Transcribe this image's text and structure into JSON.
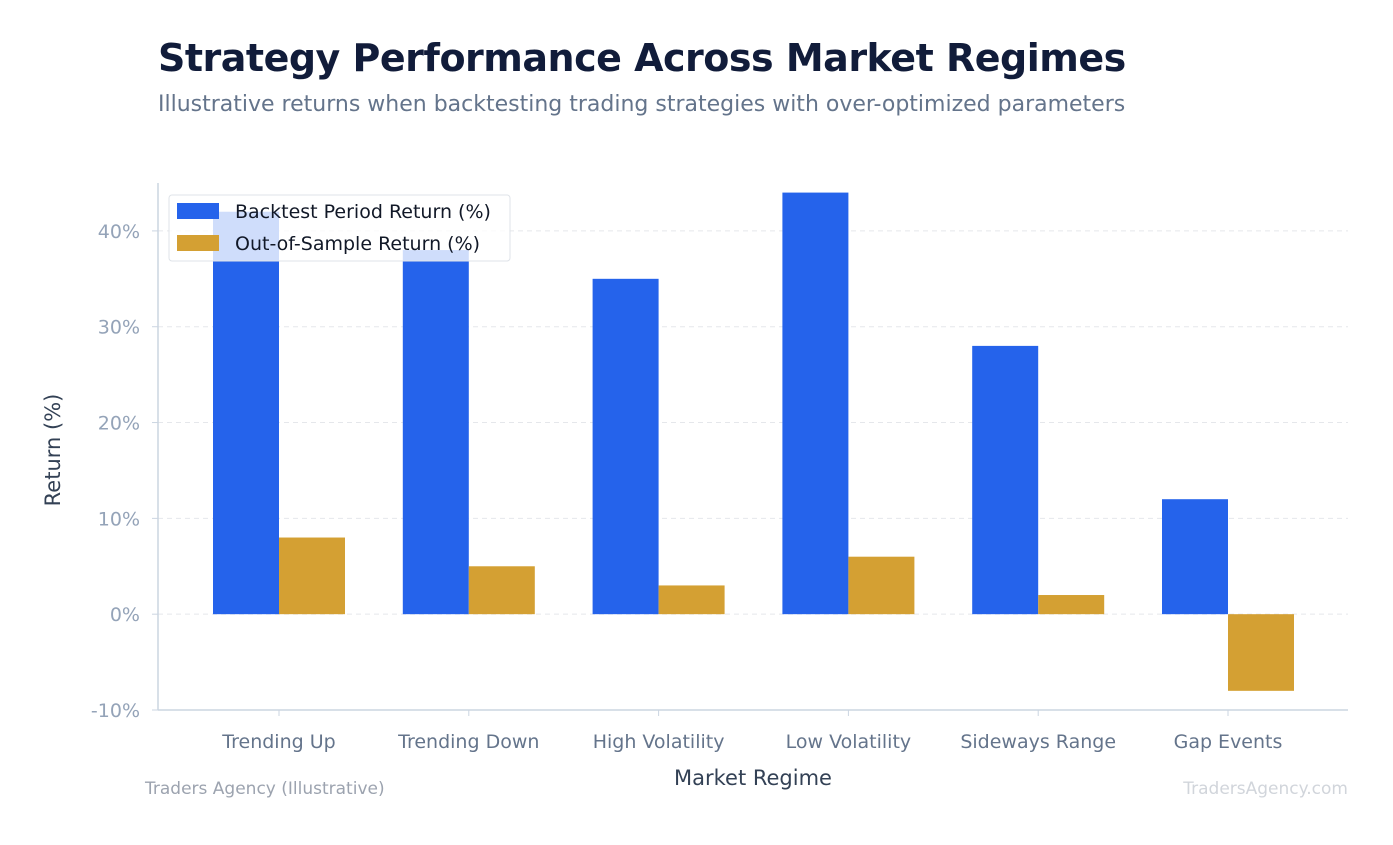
{
  "title": "Strategy Performance Across Market Regimes",
  "subtitle": "Illustrative returns when backtesting trading strategies with over-optimized parameters",
  "source_label": "Traders Agency (Illustrative)",
  "watermark": "TradersAgency.com",
  "colors": {
    "backtest": "#2563eb",
    "out_of_sample": "#d4a033",
    "title": "#111c3a",
    "axis_label": "#334155",
    "tick": "#94a3b8",
    "category_tick": "#64748b"
  },
  "chart_data": {
    "type": "bar",
    "categories": [
      "Trending Up",
      "Trending Down",
      "High Volatility",
      "Low Volatility",
      "Sideways Range",
      "Gap Events"
    ],
    "series": [
      {
        "name": "Backtest Period Return (%)",
        "values": [
          42,
          38,
          35,
          44,
          28,
          12
        ]
      },
      {
        "name": "Out-of-Sample Return (%)",
        "values": [
          8,
          5,
          3,
          6,
          2,
          -8
        ]
      }
    ],
    "xlabel": "Market Regime",
    "ylabel": "Return (%)",
    "ylim": [
      -10,
      45
    ],
    "yticks": [
      -10,
      0,
      10,
      20,
      30,
      40
    ],
    "ytick_labels": [
      "-10%",
      "0%",
      "10%",
      "20%",
      "30%",
      "40%"
    ],
    "grid": true,
    "legend_position": "top-left"
  }
}
